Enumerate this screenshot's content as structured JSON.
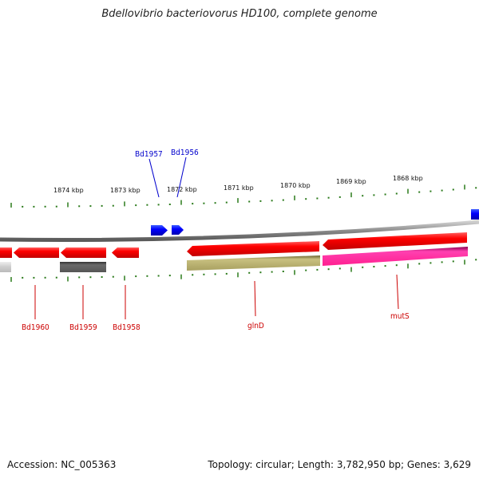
{
  "title": "Bdellovibrio bacteriovorus HD100, complete genome",
  "footer": {
    "accession_label": "Accession:",
    "accession_value": "NC_005363",
    "topology_label": "Topology:",
    "topology_value": "circular",
    "length_label": "Length:",
    "length_value": "3,782,950 bp",
    "genes_label": "Genes:",
    "genes_value": "3,629"
  },
  "scale_labels": [
    "1874 kbp",
    "1873 kbp",
    "1872 kbp",
    "1871 kbp",
    "1870 kbp",
    "1869 kbp",
    "1868 kbp"
  ],
  "genes_top": [
    {
      "name": "Bd1957",
      "color": "#0000cc"
    },
    {
      "name": "Bd1956",
      "color": "#0000cc"
    }
  ],
  "genes_bottom": [
    {
      "name": "Bd1960",
      "color": "#cc0000"
    },
    {
      "name": "Bd1959",
      "color": "#cc0000"
    },
    {
      "name": "Bd1958",
      "color": "#cc0000"
    },
    {
      "name": "glnD",
      "color": "#cc0000"
    },
    {
      "name": "mutS",
      "color": "#cc0000"
    }
  ],
  "colors": {
    "backbone": "#8a8a8a",
    "forward_gene": "#0000ff",
    "reverse_gene": "#ee0000",
    "tick": "#2a7a1a",
    "feature_gray_dark": "#555555",
    "feature_gray_light": "#bbbbbb",
    "feature_olive": "#b8b070",
    "feature_magenta": "#ff33aa"
  }
}
